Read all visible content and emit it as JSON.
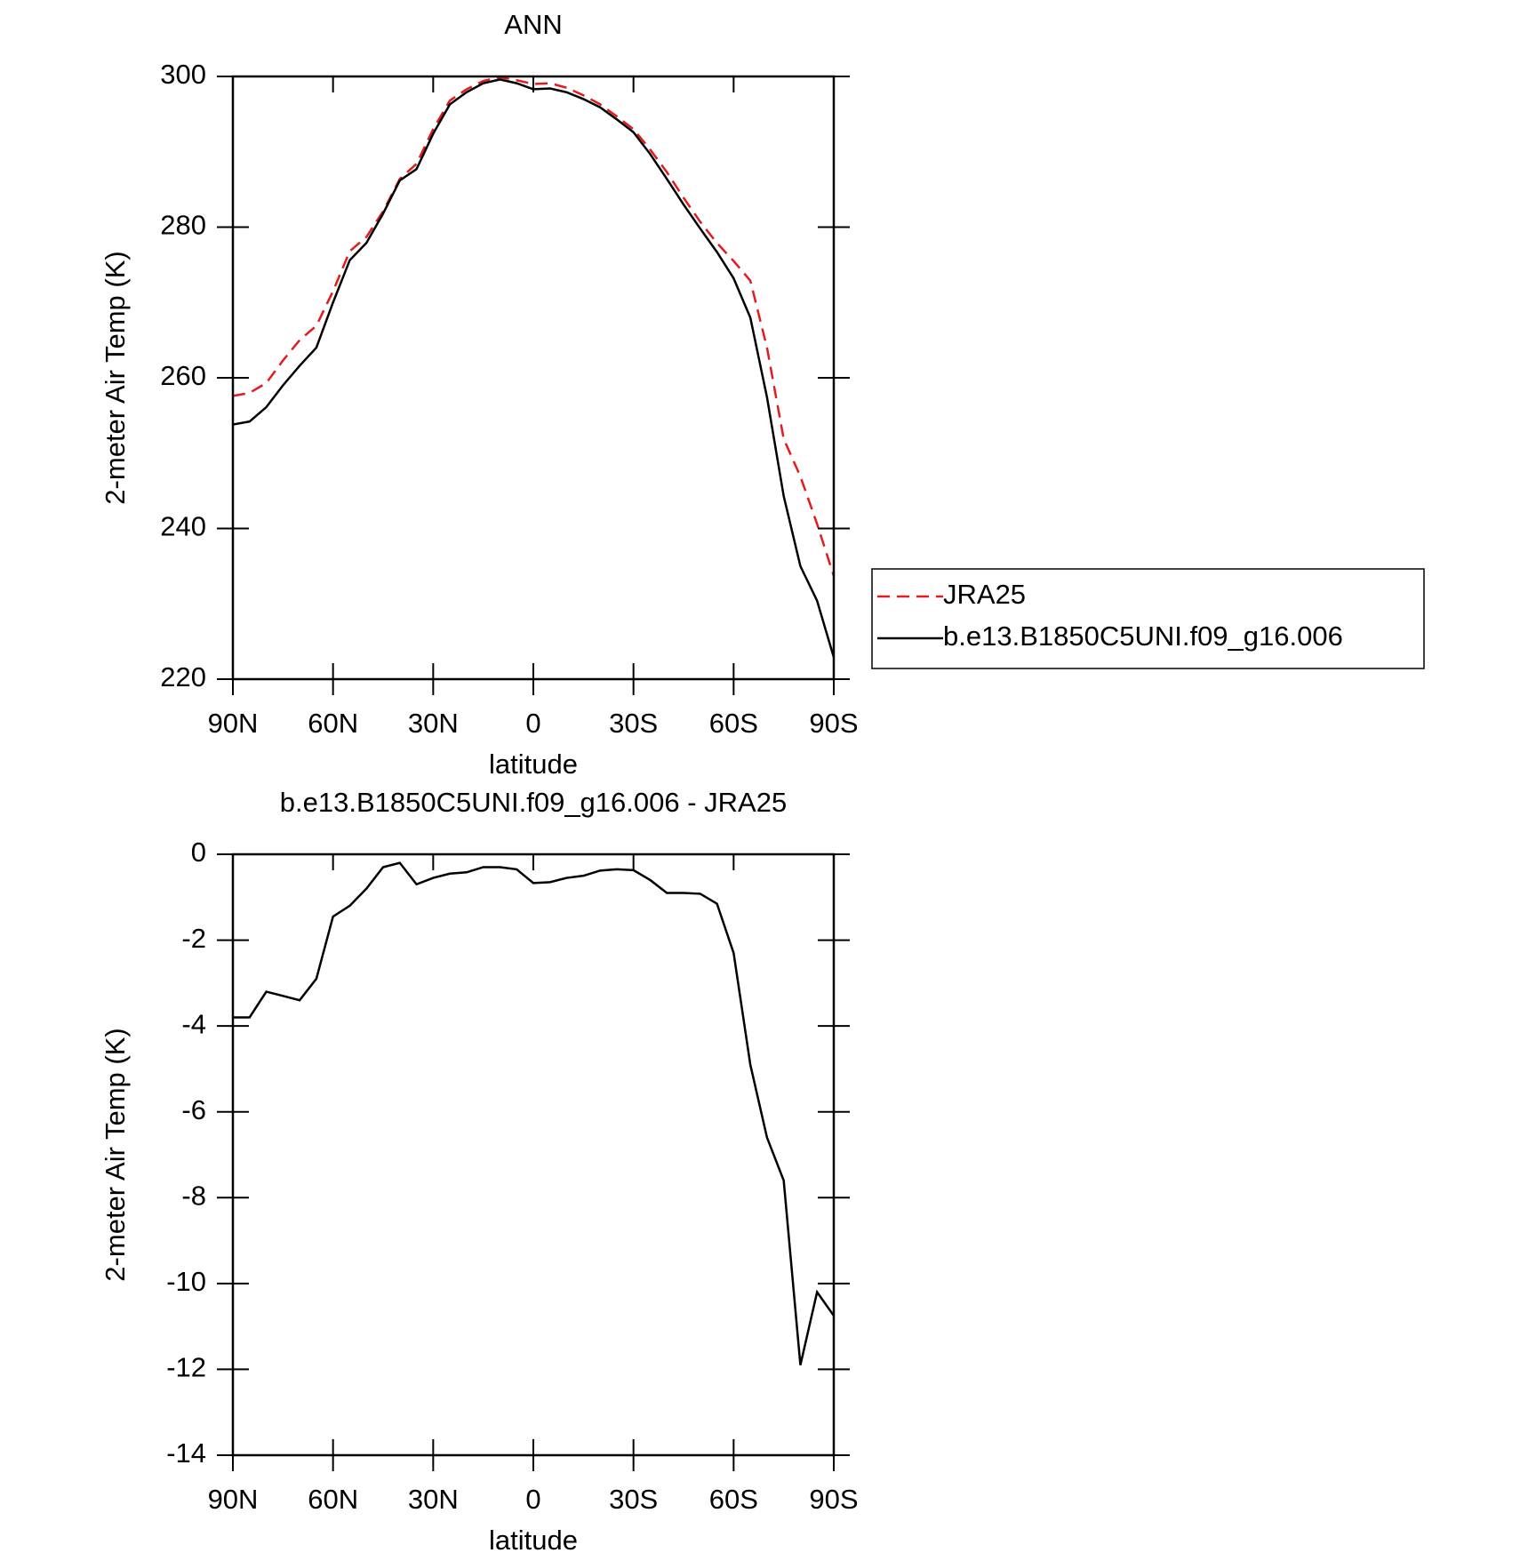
{
  "chart_data": [
    {
      "type": "line",
      "title": "ANN",
      "xlabel": "latitude",
      "ylabel": "2-meter Air Temp (K)",
      "x": [
        90,
        85,
        80,
        75,
        70,
        65,
        60,
        55,
        50,
        45,
        40,
        35,
        30,
        25,
        20,
        15,
        10,
        5,
        0,
        -5,
        -10,
        -15,
        -20,
        -25,
        -30,
        -35,
        -40,
        -45,
        -50,
        -55,
        -60,
        -65,
        -70,
        -75,
        -80,
        -85,
        -90
      ],
      "xlim": [
        90,
        -90
      ],
      "xticks": [
        {
          "value": 90,
          "label": "90N"
        },
        {
          "value": 60,
          "label": "60N"
        },
        {
          "value": 30,
          "label": "30N"
        },
        0,
        {
          "value": -30,
          "label": "30S"
        },
        {
          "value": -60,
          "label": "60S"
        },
        {
          "value": -90,
          "label": "90S"
        }
      ],
      "ylim": [
        220,
        300
      ],
      "yticks": [
        220,
        240,
        260,
        280,
        300
      ],
      "legend": "right",
      "series": [
        {
          "name": "JRA25",
          "color": "#e41a1c",
          "dash": true,
          "values": [
            257.6,
            258.0,
            259.3,
            262.3,
            265,
            266.9,
            271.5,
            276.8,
            278.7,
            282.1,
            286.4,
            288.4,
            293,
            296.8,
            298.3,
            299.4,
            299.9,
            299.5,
            299,
            299.1,
            298.5,
            297.5,
            296.3,
            294.7,
            293,
            290.3,
            287.3,
            283.9,
            280.7,
            277.9,
            275.5,
            272.9,
            264,
            251.9,
            246.9,
            240.6,
            233.7
          ]
        },
        {
          "name": "b.e13.B1850C5UNI.f09_g16.006",
          "color": "#000000",
          "dash": false,
          "values": [
            253.8,
            254.2,
            256.1,
            259,
            261.6,
            264,
            270,
            275.6,
            277.9,
            281.8,
            286.2,
            287.7,
            292.4,
            296.3,
            297.9,
            299.1,
            299.6,
            299.1,
            298.3,
            298.4,
            297.9,
            297,
            295.9,
            294.3,
            292.6,
            289.7,
            286.4,
            283,
            279.8,
            276.7,
            273.2,
            268,
            257.4,
            244.3,
            235,
            230.4,
            222.9
          ]
        }
      ]
    },
    {
      "type": "line",
      "title": "b.e13.B1850C5UNI.f09_g16.006 - JRA25",
      "xlabel": "latitude",
      "ylabel": "2-meter Air Temp (K)",
      "x": [
        90,
        85,
        80,
        75,
        70,
        65,
        60,
        55,
        50,
        45,
        40,
        35,
        30,
        25,
        20,
        15,
        10,
        5,
        0,
        -5,
        -10,
        -15,
        -20,
        -25,
        -30,
        -35,
        -40,
        -45,
        -50,
        -55,
        -60,
        -65,
        -70,
        -75,
        -80,
        -85,
        -90
      ],
      "xlim": [
        90,
        -90
      ],
      "xticks": [
        {
          "value": 90,
          "label": "90N"
        },
        {
          "value": 60,
          "label": "60N"
        },
        {
          "value": 30,
          "label": "30N"
        },
        0,
        {
          "value": -30,
          "label": "30S"
        },
        {
          "value": -60,
          "label": "60S"
        },
        {
          "value": -90,
          "label": "90S"
        }
      ],
      "ylim": [
        -14,
        0
      ],
      "yticks": [
        -14,
        -12,
        -10,
        -8,
        -6,
        -4,
        -2,
        0
      ],
      "series": [
        {
          "color": "#000000",
          "dash": false,
          "values": [
            -3.8,
            -3.8,
            -3.2,
            -3.3,
            -3.4,
            -2.9,
            -1.45,
            -1.2,
            -0.8,
            -0.3,
            -0.2,
            -0.7,
            -0.55,
            -0.45,
            -0.42,
            -0.3,
            -0.3,
            -0.35,
            -0.67,
            -0.65,
            -0.55,
            -0.5,
            -0.38,
            -0.35,
            -0.37,
            -0.6,
            -0.9,
            -0.9,
            -0.92,
            -1.15,
            -2.3,
            -4.9,
            -6.6,
            -7.6,
            -11.9,
            -10.2,
            -10.75
          ]
        }
      ]
    }
  ]
}
